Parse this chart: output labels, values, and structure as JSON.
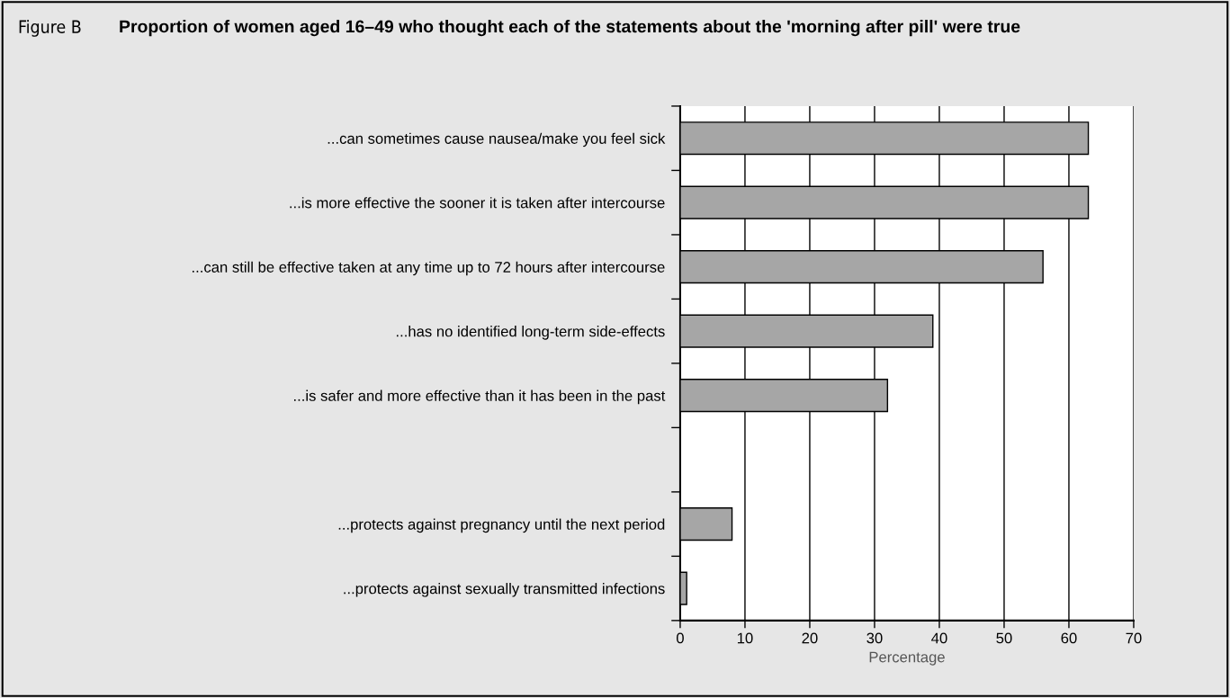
{
  "chart_data": {
    "type": "bar",
    "orientation": "horizontal",
    "title": "Proportion of women aged 16–49 who thought each of the statements about the 'morning after pill' were true",
    "subtitle": "Figure B",
    "categories": [
      "...can sometimes cause nausea/make you feel sick",
      "...is more effective the sooner it is taken after intercourse",
      "...can still be effective taken at any time up to 72 hours after intercourse",
      "...has no identified long-term side-effects",
      "...is safer and more effective than it has been in the past",
      null,
      "...protects against pregnancy until the next period",
      "...protects against sexually transmitted infections"
    ],
    "values": [
      63,
      63,
      56,
      39,
      32,
      null,
      8,
      1
    ],
    "color": "#a6a6a6",
    "xlabel": "Percentage",
    "xlim": [
      0,
      70
    ],
    "xticks": [
      0,
      10,
      20,
      30,
      40,
      50,
      60,
      70
    ],
    "grid": "x"
  }
}
